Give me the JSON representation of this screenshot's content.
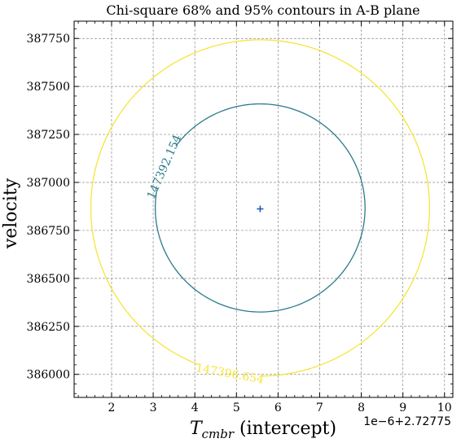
{
  "chart_data": {
    "type": "contour",
    "title": "Chi-square 68% and 95% contours in A-B plane",
    "xlabel_main": "T",
    "xlabel_sub": "cmbr",
    "xlabel_rest": " (intercept)",
    "ylabel": "velocity",
    "x_offset_label": "1e−6+2.72775",
    "xlim": [
      1.1,
      10.2
    ],
    "ylim": [
      385880,
      387840
    ],
    "x_ticks": [
      2,
      3,
      4,
      5,
      6,
      7,
      8,
      9,
      10
    ],
    "x_tick_labels": [
      "2",
      "3",
      "4",
      "5",
      "6",
      "7",
      "8",
      "9",
      "10"
    ],
    "y_ticks": [
      386000,
      386250,
      386500,
      386750,
      387000,
      387250,
      387500,
      387750
    ],
    "y_tick_labels": [
      "386000",
      "386250",
      "386500",
      "386750",
      "387000",
      "387250",
      "387500",
      "387750"
    ],
    "grid": true,
    "best_fit": {
      "x": 5.57,
      "y": 386862,
      "color": "#1f5fb0"
    },
    "contours": [
      {
        "level_label": "147392.154",
        "color": "#2a7a8c",
        "center": [
          5.57,
          386867
        ],
        "rx": 2.52,
        "ry": 542
      },
      {
        "level_label": "147396.654",
        "color": "#f5e53a",
        "center": [
          5.57,
          386867
        ],
        "rx": 4.07,
        "ry": 876
      }
    ]
  }
}
